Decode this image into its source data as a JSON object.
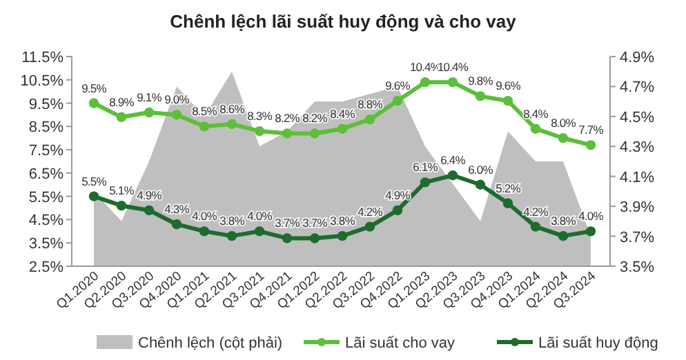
{
  "chart_data": {
    "type": "line",
    "title": "Chênh lệch lãi suất huy động và cho vay",
    "categories": [
      "Q1.2020",
      "Q2.2020",
      "Q3.2020",
      "Q4.2020",
      "Q1.2021",
      "Q2.2021",
      "Q3.2021",
      "Q4.2021",
      "Q1.2022",
      "Q2.2022",
      "Q3.2022",
      "Q4.2022",
      "Q1.2023",
      "Q2.2023",
      "Q3.2023",
      "Q4.2023",
      "Q1.2024",
      "Q2.2024",
      "Q3.2024"
    ],
    "series": [
      {
        "name": "Chênh lệch (cột phải)",
        "type": "area",
        "axis": "y2",
        "color": "#bfbfbf",
        "values": [
          4.0,
          3.8,
          4.2,
          4.7,
          4.5,
          4.8,
          4.3,
          4.4,
          4.6,
          4.6,
          4.65,
          4.7,
          4.3,
          4.05,
          3.8,
          4.4,
          4.2,
          4.2,
          3.7
        ]
      },
      {
        "name": "Lãi suất cho vay",
        "color": "#5cbf3a",
        "marker": "circle",
        "values": [
          9.5,
          8.9,
          9.1,
          9.0,
          8.5,
          8.6,
          8.3,
          8.2,
          8.2,
          8.4,
          8.8,
          9.6,
          10.4,
          10.4,
          9.8,
          9.6,
          8.4,
          8.0,
          7.7
        ],
        "value_labels": [
          "9.5%",
          "8.9%",
          "9.1%",
          "9.0%",
          "8.5%",
          "8.6%",
          "8.3%",
          "8.2%",
          "8.2%",
          "8.4%",
          "8.8%",
          "9.6%",
          "10.4%",
          "10.4%",
          "9.8%",
          "9.6%",
          "8.4%",
          "8.0%",
          "7.7%"
        ]
      },
      {
        "name": "Lãi suất huy động",
        "color": "#1e6b2e",
        "marker": "circle",
        "values": [
          5.5,
          5.1,
          4.9,
          4.3,
          4.0,
          3.8,
          4.0,
          3.7,
          3.7,
          3.8,
          4.2,
          4.9,
          6.1,
          6.4,
          6.0,
          5.2,
          4.2,
          3.8,
          4.0
        ],
        "value_labels": [
          "5.5%",
          "5.1%",
          "4.9%",
          "4.3%",
          "4.0%",
          "3.8%",
          "4.0%",
          "3.7%",
          "3.7%",
          "3.8%",
          "4.2%",
          "4.9%",
          "6.1%",
          "6.4%",
          "6.0%",
          "5.2%",
          "4.2%",
          "3.8%",
          "4.0%"
        ]
      }
    ],
    "ylim": [
      2.5,
      11.5
    ],
    "yticks": [
      {
        "value": 2.5,
        "label": "2.5%"
      },
      {
        "value": 3.5,
        "label": "3.5%"
      },
      {
        "value": 4.5,
        "label": "4.5%"
      },
      {
        "value": 5.5,
        "label": "5.5%"
      },
      {
        "value": 6.5,
        "label": "6.5%"
      },
      {
        "value": 7.5,
        "label": "7.5%"
      },
      {
        "value": 8.5,
        "label": "8.5%"
      },
      {
        "value": 9.5,
        "label": "9.5%"
      },
      {
        "value": 10.5,
        "label": "10.5%"
      },
      {
        "value": 11.5,
        "label": "11.5%"
      }
    ],
    "y2lim": [
      3.5,
      4.9
    ],
    "y2ticks": [
      {
        "value": 3.5,
        "label": "3.5%"
      },
      {
        "value": 3.7,
        "label": "3.7%"
      },
      {
        "value": 3.9,
        "label": "3.9%"
      },
      {
        "value": 4.1,
        "label": "4.1%"
      },
      {
        "value": 4.3,
        "label": "4.3%"
      },
      {
        "value": 4.5,
        "label": "4.5%"
      },
      {
        "value": 4.7,
        "label": "4.7%"
      },
      {
        "value": 4.9,
        "label": "4.9%"
      }
    ],
    "legend": "bottom",
    "grid": false
  }
}
